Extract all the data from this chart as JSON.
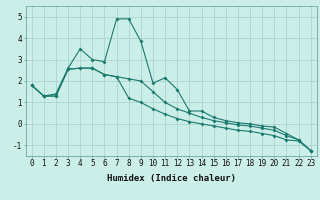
{
  "xlabel": "Humidex (Indice chaleur)",
  "background_color": "#cceee8",
  "grid_color": "#aad4ce",
  "line_color": "#1a7a6e",
  "x_data": [
    0,
    1,
    2,
    3,
    4,
    5,
    6,
    7,
    8,
    9,
    10,
    11,
    12,
    13,
    14,
    15,
    16,
    17,
    18,
    19,
    20,
    21,
    22,
    23
  ],
  "line1_y": [
    1.8,
    1.3,
    1.4,
    2.6,
    3.5,
    3.0,
    2.9,
    4.9,
    4.9,
    3.85,
    1.9,
    2.15,
    1.6,
    0.6,
    0.6,
    0.3,
    0.15,
    0.05,
    0.0,
    -0.1,
    -0.15,
    -0.45,
    -0.75,
    -1.25
  ],
  "line2_y": [
    1.8,
    1.3,
    1.3,
    2.55,
    2.6,
    2.6,
    2.3,
    2.2,
    2.1,
    2.0,
    1.5,
    1.0,
    0.7,
    0.5,
    0.3,
    0.15,
    0.05,
    -0.05,
    -0.1,
    -0.2,
    -0.3,
    -0.55,
    -0.75,
    -1.25
  ],
  "line3_y": [
    1.8,
    1.3,
    1.3,
    2.55,
    2.6,
    2.6,
    2.3,
    2.2,
    1.2,
    1.0,
    0.7,
    0.45,
    0.25,
    0.1,
    0.0,
    -0.1,
    -0.2,
    -0.3,
    -0.35,
    -0.45,
    -0.55,
    -0.75,
    -0.8,
    -1.25
  ],
  "xlim": [
    -0.5,
    23.5
  ],
  "ylim": [
    -1.5,
    5.5
  ],
  "yticks": [
    -1,
    0,
    1,
    2,
    3,
    4,
    5
  ],
  "xticks": [
    0,
    1,
    2,
    3,
    4,
    5,
    6,
    7,
    8,
    9,
    10,
    11,
    12,
    13,
    14,
    15,
    16,
    17,
    18,
    19,
    20,
    21,
    22,
    23
  ],
  "xlabel_fontsize": 6.5,
  "tick_fontsize": 5.5
}
